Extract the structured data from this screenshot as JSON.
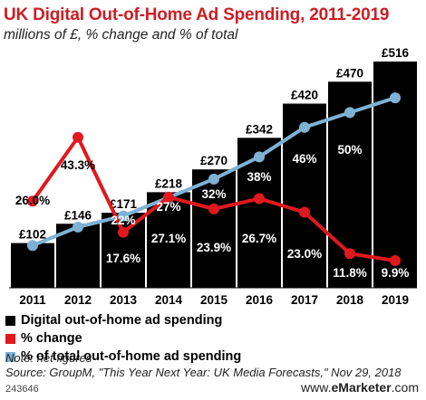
{
  "header": {
    "title": "UK Digital Out-of-Home Ad Spending, 2011-2019",
    "subtitle": "millions of £, % change and % of total"
  },
  "colors": {
    "bars": "#000000",
    "change": "#e0191f",
    "share": "#7eb2d4",
    "title": "#cc1e25"
  },
  "chart_data": {
    "type": "bar",
    "categories": [
      "2011",
      "2012",
      "2013",
      "2014",
      "2015",
      "2016",
      "2017",
      "2018",
      "2019"
    ],
    "series": [
      {
        "name": "Digital out-of-home ad spending",
        "type": "bar",
        "values": [
          102,
          146,
          171,
          218,
          270,
          342,
          420,
          470,
          516
        ],
        "labels": [
          "£102",
          "£146",
          "£171",
          "£218",
          "£270",
          "£342",
          "£420",
          "£470",
          "£516"
        ]
      },
      {
        "name": "% change",
        "type": "line",
        "values": [
          26.0,
          43.3,
          17.6,
          27.1,
          23.9,
          26.7,
          23.0,
          11.8,
          9.9
        ],
        "labels": [
          "26.0%",
          "43.3%",
          "17.6%",
          "27.1%",
          "23.9%",
          "26.7%",
          "23.0%",
          "11.8%",
          "9.9%"
        ]
      },
      {
        "name": "% of total out-of-home ad spending",
        "type": "line",
        "values": [
          14,
          19,
          22,
          27,
          32,
          38,
          46,
          50,
          54
        ],
        "labels": [
          "14%",
          "19%",
          "22%",
          "27%",
          "32%",
          "38%",
          "46%",
          "50%",
          "54%"
        ]
      }
    ]
  },
  "legend": [
    {
      "label": "Digital out-of-home ad spending",
      "color": "#000000"
    },
    {
      "label": "% change",
      "color": "#e0191f"
    },
    {
      "label": "% of total out-of-home ad spending",
      "color": "#7eb2d4"
    }
  ],
  "notes": {
    "note": "Note: net figures",
    "source": "Source: GroupM, \"This Year Next Year: UK Media Forecasts,\" Nov 29, 2018"
  },
  "footer": {
    "chart_id": "243646",
    "brand_prefix": "www.",
    "brand_e": "e",
    "brand_name": "Marketer",
    "brand_suffix": ".com"
  }
}
